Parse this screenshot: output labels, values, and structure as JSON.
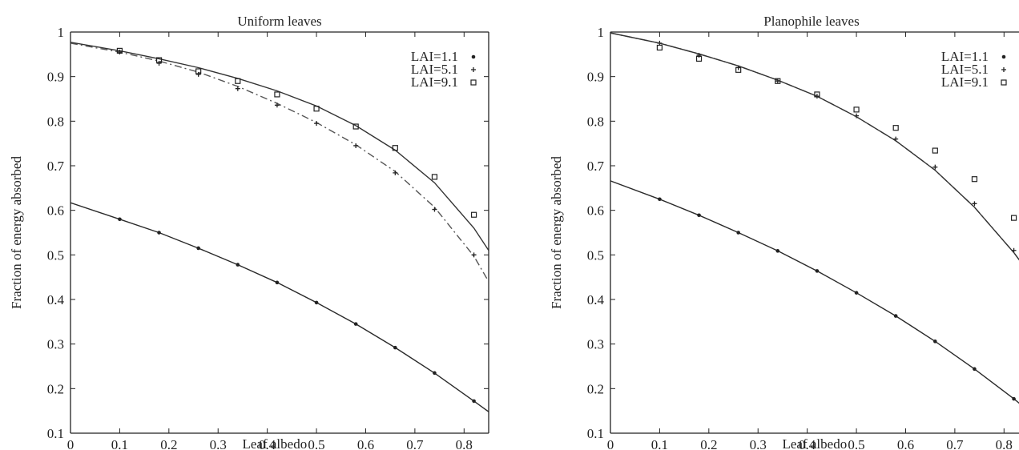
{
  "chart_data": [
    {
      "type": "line",
      "title": "Uniform leaves",
      "xlabel": "Leaf albedo",
      "ylabel": "Fraction of energy absorbed",
      "xlim": [
        0,
        0.85
      ],
      "ylim": [
        0.1,
        1.0
      ],
      "xticks": [
        "0",
        "0.1",
        "0.2",
        "0.3",
        "0.4",
        "0.5",
        "0.6",
        "0.7",
        "0.8"
      ],
      "yticks": [
        "0.1",
        "0.2",
        "0.3",
        "0.4",
        "0.5",
        "0.6",
        "0.7",
        "0.8",
        "0.9",
        "1"
      ],
      "grid": false,
      "legend_position": "top-right",
      "series": [
        {
          "name": "LAI=1.1",
          "marker": "dot",
          "line_style": "solid",
          "points_x": [
            0.1,
            0.18,
            0.26,
            0.34,
            0.42,
            0.5,
            0.58,
            0.66,
            0.74,
            0.82
          ],
          "points_y": [
            0.58,
            0.55,
            0.515,
            0.478,
            0.438,
            0.393,
            0.345,
            0.292,
            0.235,
            0.172
          ],
          "curve_x": [
            0,
            0.1,
            0.18,
            0.26,
            0.34,
            0.42,
            0.5,
            0.58,
            0.66,
            0.74,
            0.82,
            0.85
          ],
          "curve_y": [
            0.617,
            0.58,
            0.55,
            0.515,
            0.478,
            0.438,
            0.393,
            0.345,
            0.292,
            0.235,
            0.172,
            0.148
          ]
        },
        {
          "name": "LAI=5.1",
          "marker": "plus",
          "line_style": "dashdot",
          "points_x": [
            0.1,
            0.18,
            0.26,
            0.34,
            0.42,
            0.5,
            0.58,
            0.66,
            0.74,
            0.82
          ],
          "points_y": [
            0.955,
            0.93,
            0.905,
            0.873,
            0.836,
            0.795,
            0.745,
            0.684,
            0.602,
            0.5
          ],
          "curve_x": [
            0,
            0.1,
            0.18,
            0.26,
            0.34,
            0.42,
            0.5,
            0.58,
            0.66,
            0.74,
            0.82,
            0.85
          ],
          "curve_y": [
            0.975,
            0.955,
            0.935,
            0.91,
            0.878,
            0.84,
            0.797,
            0.747,
            0.687,
            0.607,
            0.497,
            0.44
          ]
        },
        {
          "name": "LAI=9.1",
          "marker": "square",
          "line_style": "solid",
          "points_x": [
            0.1,
            0.18,
            0.26,
            0.34,
            0.42,
            0.5,
            0.58,
            0.66,
            0.74,
            0.82
          ],
          "points_y": [
            0.958,
            0.937,
            0.912,
            0.89,
            0.86,
            0.828,
            0.788,
            0.74,
            0.675,
            0.59
          ],
          "curve_x": [
            0,
            0.1,
            0.18,
            0.26,
            0.34,
            0.42,
            0.5,
            0.58,
            0.66,
            0.74,
            0.82,
            0.85
          ],
          "curve_y": [
            0.977,
            0.958,
            0.94,
            0.92,
            0.896,
            0.868,
            0.834,
            0.79,
            0.735,
            0.662,
            0.56,
            0.51
          ]
        }
      ]
    },
    {
      "type": "line",
      "title": "Planophile leaves",
      "xlabel": "Leaf albedo",
      "ylabel": "Fraction of energy absorbed",
      "xlim": [
        0,
        0.85
      ],
      "ylim": [
        0.1,
        1.0
      ],
      "xticks": [
        "0",
        "0.1",
        "0.2",
        "0.3",
        "0.4",
        "0.5",
        "0.6",
        "0.7",
        "0.8"
      ],
      "yticks": [
        "0.1",
        "0.2",
        "0.3",
        "0.4",
        "0.5",
        "0.6",
        "0.7",
        "0.8",
        "0.9",
        "1"
      ],
      "grid": false,
      "legend_position": "top-right",
      "series": [
        {
          "name": "LAI=1.1",
          "marker": "dot",
          "line_style": "solid",
          "points_x": [
            0.1,
            0.18,
            0.26,
            0.34,
            0.42,
            0.5,
            0.58,
            0.66,
            0.74,
            0.82
          ],
          "points_y": [
            0.625,
            0.589,
            0.55,
            0.509,
            0.464,
            0.415,
            0.363,
            0.306,
            0.244,
            0.177
          ],
          "curve_x": [
            0,
            0.1,
            0.18,
            0.26,
            0.34,
            0.42,
            0.5,
            0.58,
            0.66,
            0.74,
            0.82,
            0.85
          ],
          "curve_y": [
            0.666,
            0.625,
            0.589,
            0.55,
            0.509,
            0.464,
            0.415,
            0.363,
            0.306,
            0.244,
            0.177,
            0.15
          ]
        },
        {
          "name": "LAI=5.1",
          "marker": "plus",
          "line_style": "dashdot",
          "points_x": [
            0.1,
            0.18,
            0.26,
            0.34,
            0.42,
            0.5,
            0.58,
            0.66,
            0.74,
            0.82
          ],
          "points_y": [
            0.975,
            0.948,
            0.92,
            0.89,
            0.856,
            0.812,
            0.76,
            0.697,
            0.615,
            0.51
          ],
          "curve_x": [
            0,
            0.1,
            0.18,
            0.26,
            0.34,
            0.42,
            0.5,
            0.58,
            0.66,
            0.74,
            0.82,
            0.85
          ],
          "curve_y": [
            0.998,
            0.975,
            0.951,
            0.924,
            0.892,
            0.856,
            0.81,
            0.756,
            0.69,
            0.607,
            0.505,
            0.46
          ]
        },
        {
          "name": "LAI=9.1",
          "marker": "square",
          "line_style": "solid",
          "points_x": [
            0.1,
            0.18,
            0.26,
            0.34,
            0.42,
            0.5,
            0.58,
            0.66,
            0.74,
            0.82
          ],
          "points_y": [
            0.965,
            0.94,
            0.915,
            0.89,
            0.86,
            0.826,
            0.785,
            0.734,
            0.67,
            0.583
          ],
          "curve_x": [
            0,
            0.1,
            0.18,
            0.26,
            0.34,
            0.42,
            0.5,
            0.58,
            0.66,
            0.74,
            0.82,
            0.85
          ],
          "curve_y": [
            0.998,
            0.975,
            0.951,
            0.924,
            0.892,
            0.856,
            0.81,
            0.756,
            0.69,
            0.607,
            0.505,
            0.46
          ]
        }
      ]
    }
  ],
  "colors": {
    "axis": "#222222",
    "lai_1_1_line": "#2a2a2a",
    "lai_5_1_line": "#555555",
    "lai_9_1_line": "#333333"
  }
}
